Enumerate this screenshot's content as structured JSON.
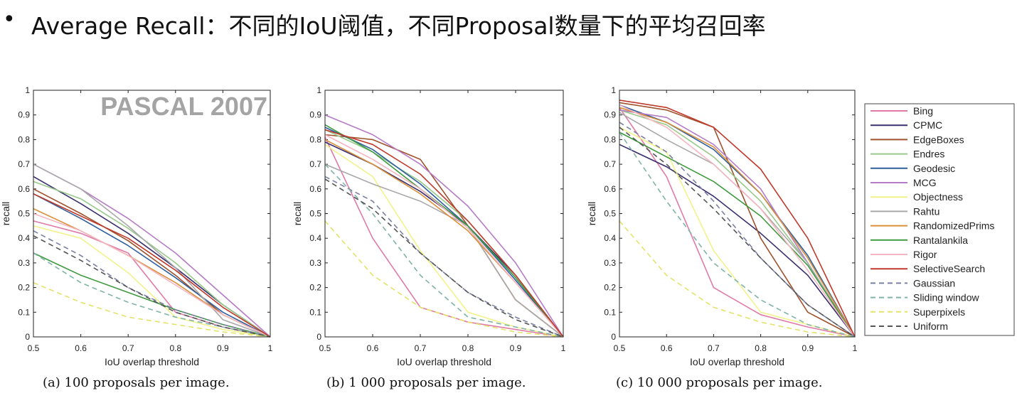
{
  "slide": {
    "bullet": "•",
    "title": "Average Recall：不同的IoU阈值，不同Proposal数量下的平均召回率"
  },
  "captions": [
    "(a) 100 proposals per image.",
    "(b) 1 000 proposals per image.",
    "(c) 10 000 proposals per image."
  ],
  "legend": [
    {
      "name": "Bing",
      "color": "#e07aa8",
      "dash": false
    },
    {
      "name": "CPMC",
      "color": "#3a2f6e",
      "dash": false
    },
    {
      "name": "EdgeBoxes",
      "color": "#a0522d",
      "dash": false
    },
    {
      "name": "Endres",
      "color": "#98c98a",
      "dash": false
    },
    {
      "name": "Geodesic",
      "color": "#2f5f9e",
      "dash": false
    },
    {
      "name": "MCG",
      "color": "#b57bc6",
      "dash": false
    },
    {
      "name": "Objectness",
      "color": "#f2f28c",
      "dash": false
    },
    {
      "name": "Rahtu",
      "color": "#a9a9a9",
      "dash": false
    },
    {
      "name": "RandomizedPrims",
      "color": "#d9903a",
      "dash": false
    },
    {
      "name": "Rantalankila",
      "color": "#3e9a3e",
      "dash": false
    },
    {
      "name": "Rigor",
      "color": "#f4b6c2",
      "dash": false
    },
    {
      "name": "SelectiveSearch",
      "color": "#c0392b",
      "dash": false
    },
    {
      "name": "Gaussian",
      "color": "#7a7fa3",
      "dash": true
    },
    {
      "name": "Sliding window",
      "color": "#7fb3a8",
      "dash": true
    },
    {
      "name": "Superpixels",
      "color": "#e3e36a",
      "dash": true
    },
    {
      "name": "Uniform",
      "color": "#555555",
      "dash": true
    }
  ],
  "chart_data": [
    {
      "type": "line",
      "title": "(a) 100 proposals per image.",
      "watermark": "PASCAL 2007",
      "xlabel": "IoU overlap threshold",
      "ylabel": "recall",
      "xlim": [
        0.5,
        1
      ],
      "ylim": [
        0,
        1
      ],
      "xticks": [
        "0.5",
        "0.6",
        "0.7",
        "0.8",
        "0.9",
        "1"
      ],
      "yticks": [
        "0",
        "0.1",
        "0.2",
        "0.3",
        "0.4",
        "0.5",
        "0.6",
        "0.7",
        "0.8",
        "0.9",
        "1"
      ],
      "x": [
        0.5,
        0.6,
        0.7,
        0.8,
        0.9,
        1.0
      ],
      "series": [
        {
          "name": "Bing",
          "values": [
            0.47,
            0.42,
            0.34,
            0.1,
            0.04,
            0
          ]
        },
        {
          "name": "CPMC",
          "values": [
            0.65,
            0.54,
            0.42,
            0.28,
            0.13,
            0
          ]
        },
        {
          "name": "EdgeBoxes",
          "values": [
            0.6,
            0.5,
            0.39,
            0.25,
            0.09,
            0
          ]
        },
        {
          "name": "Endres",
          "values": [
            0.63,
            0.56,
            0.44,
            0.3,
            0.13,
            0
          ]
        },
        {
          "name": "Geodesic",
          "values": [
            0.58,
            0.48,
            0.37,
            0.24,
            0.1,
            0
          ]
        },
        {
          "name": "MCG",
          "values": [
            0.7,
            0.6,
            0.48,
            0.34,
            0.17,
            0
          ]
        },
        {
          "name": "Objectness",
          "values": [
            0.45,
            0.4,
            0.26,
            0.08,
            0.03,
            0
          ]
        },
        {
          "name": "Rahtu",
          "values": [
            0.7,
            0.6,
            0.45,
            0.28,
            0.07,
            0
          ]
        },
        {
          "name": "RandomizedPrims",
          "values": [
            0.52,
            0.43,
            0.33,
            0.22,
            0.09,
            0
          ]
        },
        {
          "name": "Rantalankila",
          "values": [
            0.34,
            0.25,
            0.18,
            0.11,
            0.05,
            0
          ]
        },
        {
          "name": "Rigor",
          "values": [
            0.5,
            0.43,
            0.33,
            0.21,
            0.09,
            0
          ]
        },
        {
          "name": "SelectiveSearch",
          "values": [
            0.58,
            0.49,
            0.4,
            0.27,
            0.12,
            0
          ]
        },
        {
          "name": "Gaussian",
          "values": [
            0.43,
            0.33,
            0.2,
            0.11,
            0.05,
            0
          ]
        },
        {
          "name": "Sliding window",
          "values": [
            0.34,
            0.22,
            0.14,
            0.08,
            0.04,
            0
          ]
        },
        {
          "name": "Superpixels",
          "values": [
            0.22,
            0.14,
            0.08,
            0.05,
            0.02,
            0
          ]
        },
        {
          "name": "Uniform",
          "values": [
            0.41,
            0.31,
            0.2,
            0.1,
            0.04,
            0
          ]
        }
      ]
    },
    {
      "type": "line",
      "title": "(b) 1 000 proposals per image.",
      "watermark": "",
      "xlabel": "IoU overlap threshold",
      "ylabel": "recall",
      "xlim": [
        0.5,
        1
      ],
      "ylim": [
        0,
        1
      ],
      "xticks": [
        "0.5",
        "0.6",
        "0.7",
        "0.8",
        "0.9",
        "1"
      ],
      "yticks": [
        "0",
        "0.1",
        "0.2",
        "0.3",
        "0.4",
        "0.5",
        "0.6",
        "0.7",
        "0.8",
        "0.9",
        "1"
      ],
      "x": [
        0.5,
        0.6,
        0.7,
        0.8,
        0.9,
        1.0
      ],
      "series": [
        {
          "name": "Bing",
          "values": [
            0.81,
            0.4,
            0.12,
            0.06,
            0.03,
            0
          ]
        },
        {
          "name": "CPMC",
          "values": [
            0.79,
            0.7,
            0.59,
            0.45,
            0.25,
            0
          ]
        },
        {
          "name": "EdgeBoxes",
          "values": [
            0.82,
            0.8,
            0.72,
            0.45,
            0.15,
            0
          ]
        },
        {
          "name": "Endres",
          "values": [
            0.84,
            0.75,
            0.63,
            0.47,
            0.25,
            0
          ]
        },
        {
          "name": "Geodesic",
          "values": [
            0.85,
            0.76,
            0.62,
            0.45,
            0.23,
            0
          ]
        },
        {
          "name": "MCG",
          "values": [
            0.9,
            0.82,
            0.7,
            0.53,
            0.3,
            0
          ]
        },
        {
          "name": "Objectness",
          "values": [
            0.78,
            0.65,
            0.35,
            0.1,
            0.04,
            0
          ]
        },
        {
          "name": "Rahtu",
          "values": [
            0.7,
            0.62,
            0.55,
            0.45,
            0.15,
            0
          ]
        },
        {
          "name": "RandomizedPrims",
          "values": [
            0.8,
            0.7,
            0.58,
            0.43,
            0.22,
            0
          ]
        },
        {
          "name": "Rantalankila",
          "values": [
            0.86,
            0.75,
            0.6,
            0.45,
            0.24,
            0
          ]
        },
        {
          "name": "Rigor",
          "values": [
            0.82,
            0.72,
            0.6,
            0.44,
            0.22,
            0
          ]
        },
        {
          "name": "SelectiveSearch",
          "values": [
            0.84,
            0.78,
            0.66,
            0.47,
            0.25,
            0
          ]
        },
        {
          "name": "Gaussian",
          "values": [
            0.65,
            0.55,
            0.34,
            0.18,
            0.08,
            0
          ]
        },
        {
          "name": "Sliding window",
          "values": [
            0.7,
            0.5,
            0.25,
            0.08,
            0.04,
            0
          ]
        },
        {
          "name": "Superpixels",
          "values": [
            0.47,
            0.25,
            0.12,
            0.06,
            0.02,
            0
          ]
        },
        {
          "name": "Uniform",
          "values": [
            0.64,
            0.52,
            0.34,
            0.18,
            0.07,
            0
          ]
        }
      ]
    },
    {
      "type": "line",
      "title": "(c) 10 000 proposals per image.",
      "watermark": "",
      "xlabel": "IoU overlap threshold",
      "ylabel": "recall",
      "xlim": [
        0.5,
        1
      ],
      "ylim": [
        0,
        1
      ],
      "xticks": [
        "0.5",
        "0.6",
        "0.7",
        "0.8",
        "0.9",
        "1"
      ],
      "yticks": [
        "0",
        "0.1",
        "0.2",
        "0.3",
        "0.4",
        "0.5",
        "0.6",
        "0.7",
        "0.8",
        "0.9",
        "1"
      ],
      "x": [
        0.5,
        0.6,
        0.7,
        0.8,
        0.9,
        1.0
      ],
      "series": [
        {
          "name": "Bing",
          "values": [
            0.93,
            0.65,
            0.2,
            0.09,
            0.04,
            0
          ]
        },
        {
          "name": "CPMC",
          "values": [
            0.78,
            0.69,
            0.57,
            0.42,
            0.25,
            0
          ]
        },
        {
          "name": "EdgeBoxes",
          "values": [
            0.95,
            0.92,
            0.85,
            0.4,
            0.1,
            0
          ]
        },
        {
          "name": "Endres",
          "values": [
            0.92,
            0.86,
            0.73,
            0.55,
            0.3,
            0
          ]
        },
        {
          "name": "Geodesic",
          "values": [
            0.94,
            0.87,
            0.76,
            0.58,
            0.33,
            0
          ]
        },
        {
          "name": "MCG",
          "values": [
            0.92,
            0.89,
            0.78,
            0.6,
            0.3,
            0
          ]
        },
        {
          "name": "Objectness",
          "values": [
            0.85,
            0.75,
            0.35,
            0.1,
            0.05,
            0
          ]
        },
        {
          "name": "Rahtu",
          "values": [
            0.91,
            0.8,
            0.7,
            0.52,
            0.3,
            0
          ]
        },
        {
          "name": "RandomizedPrims",
          "values": [
            0.93,
            0.87,
            0.77,
            0.58,
            0.32,
            0
          ]
        },
        {
          "name": "Rantalankila",
          "values": [
            0.83,
            0.73,
            0.63,
            0.49,
            0.29,
            0
          ]
        },
        {
          "name": "Rigor",
          "values": [
            0.94,
            0.85,
            0.7,
            0.52,
            0.27,
            0
          ]
        },
        {
          "name": "SelectiveSearch",
          "values": [
            0.96,
            0.93,
            0.85,
            0.68,
            0.4,
            0
          ]
        },
        {
          "name": "Gaussian",
          "values": [
            0.87,
            0.75,
            0.55,
            0.32,
            0.13,
            0
          ]
        },
        {
          "name": "Sliding window",
          "values": [
            0.83,
            0.55,
            0.3,
            0.15,
            0.05,
            0
          ]
        },
        {
          "name": "Superpixels",
          "values": [
            0.47,
            0.25,
            0.12,
            0.06,
            0.02,
            0
          ]
        },
        {
          "name": "Uniform",
          "values": [
            0.85,
            0.7,
            0.52,
            0.32,
            0.13,
            0
          ]
        }
      ]
    }
  ]
}
